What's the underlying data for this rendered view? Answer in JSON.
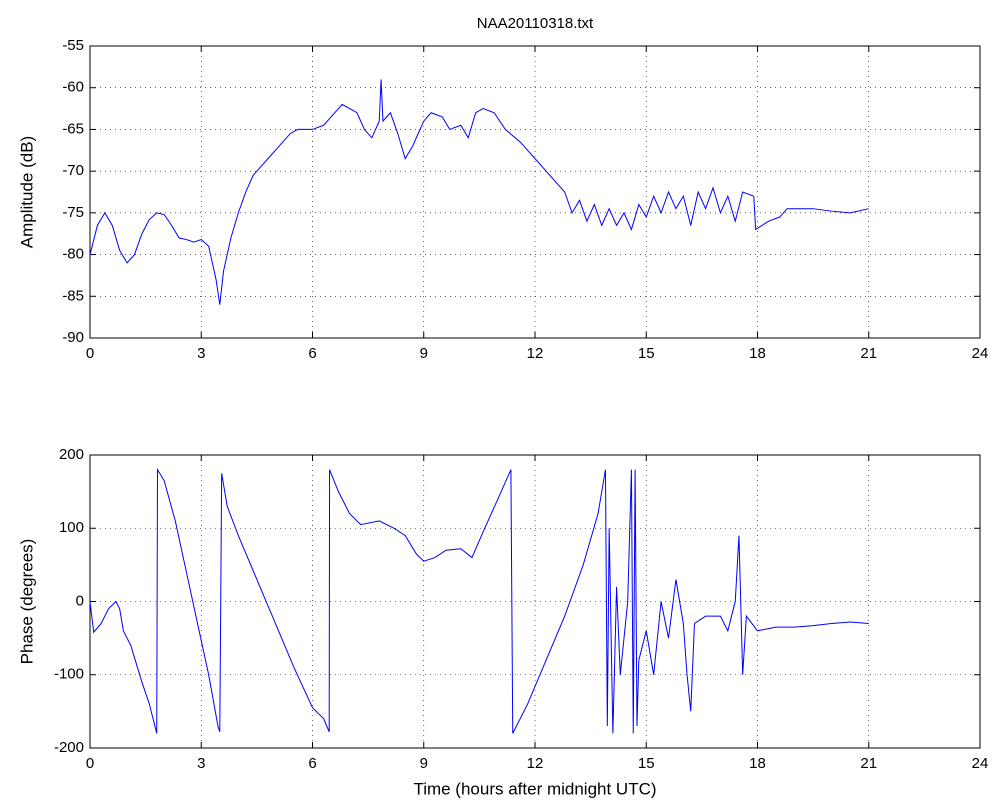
{
  "chart_data": [
    {
      "type": "line",
      "title": "NAA20110318.txt",
      "ylabel": "Amplitude (dB)",
      "x": [
        0,
        0.2,
        0.4,
        0.6,
        0.8,
        1.0,
        1.2,
        1.4,
        1.6,
        1.8,
        2.0,
        2.2,
        2.4,
        2.6,
        2.8,
        3.0,
        3.2,
        3.4,
        3.5,
        3.6,
        3.8,
        4.0,
        4.2,
        4.4,
        4.6,
        4.8,
        5.0,
        5.2,
        5.4,
        5.6,
        6.0,
        6.3,
        6.5,
        6.8,
        7.0,
        7.2,
        7.4,
        7.6,
        7.8,
        7.85,
        7.9,
        8.1,
        8.3,
        8.5,
        8.7,
        9.0,
        9.2,
        9.5,
        9.7,
        10.0,
        10.2,
        10.4,
        10.6,
        10.9,
        11.2,
        11.6,
        12.0,
        12.4,
        12.8,
        13.0,
        13.2,
        13.4,
        13.6,
        13.8,
        14.0,
        14.2,
        14.4,
        14.6,
        14.8,
        15.0,
        15.2,
        15.4,
        15.6,
        15.8,
        16.0,
        16.2,
        16.4,
        16.6,
        16.8,
        17.0,
        17.2,
        17.4,
        17.6,
        17.9,
        17.95,
        18.3,
        18.6,
        18.8,
        19.5,
        20.0,
        20.5,
        21.0
      ],
      "series": [
        {
          "color": "#0000ff",
          "values": [
            -80,
            -76.5,
            -75,
            -76.5,
            -79.5,
            -81,
            -80,
            -77.5,
            -75.8,
            -75,
            -75.2,
            -76.5,
            -78,
            -78.2,
            -78.5,
            -78.2,
            -79,
            -83,
            -86,
            -82,
            -78,
            -75,
            -72.5,
            -70.5,
            -69.5,
            -68.5,
            -67.5,
            -66.5,
            -65.5,
            -65,
            -65,
            -64.5,
            -63.5,
            -62,
            -62.5,
            -63,
            -65,
            -66,
            -64,
            -59,
            -64,
            -63,
            -65.5,
            -68.5,
            -67,
            -64,
            -63,
            -63.5,
            -65,
            -64.5,
            -66,
            -63,
            -62.5,
            -63,
            -65,
            -66.5,
            -68.5,
            -70.5,
            -72.5,
            -75,
            -73.5,
            -76,
            -74,
            -76.5,
            -74.5,
            -76.5,
            -75,
            -77,
            -74,
            -75.5,
            -73,
            -75,
            -72.5,
            -74.5,
            -73,
            -76.5,
            -72.5,
            -74.5,
            -72,
            -75,
            -73,
            -76,
            -72.5,
            -73,
            -77,
            -76,
            -75.5,
            -74.5,
            -74.5,
            -74.8,
            -75,
            -74.5
          ]
        }
      ],
      "xlim": [
        0,
        24
      ],
      "xticks": [
        0,
        3,
        6,
        9,
        12,
        15,
        18,
        21,
        24
      ],
      "ylim": [
        -90,
        -55
      ],
      "yticks": [
        -90,
        -85,
        -80,
        -75,
        -70,
        -65,
        -60,
        -55
      ],
      "grid": true
    },
    {
      "type": "line",
      "xlabel": "Time (hours after midnight UTC)",
      "ylabel": "Phase (degrees)",
      "x": [
        0,
        0.1,
        0.3,
        0.5,
        0.7,
        0.8,
        0.9,
        1.1,
        1.4,
        1.6,
        1.8,
        1.82,
        2.0,
        2.3,
        2.6,
        2.9,
        3.2,
        3.45,
        3.5,
        3.55,
        3.7,
        4.0,
        4.5,
        5.0,
        5.5,
        6.0,
        6.3,
        6.45,
        6.46,
        6.7,
        7.0,
        7.3,
        7.8,
        8.2,
        8.5,
        8.8,
        9.0,
        9.3,
        9.6,
        10.0,
        10.3,
        10.6,
        11.0,
        11.35,
        11.4,
        11.8,
        12.3,
        12.8,
        13.3,
        13.7,
        13.9,
        13.95,
        14.0,
        14.1,
        14.2,
        14.3,
        14.4,
        14.5,
        14.6,
        14.65,
        14.7,
        14.75,
        14.8,
        15.0,
        15.2,
        15.4,
        15.6,
        15.8,
        16.0,
        16.1,
        16.2,
        16.3,
        16.6,
        17.0,
        17.2,
        17.4,
        17.5,
        17.6,
        17.7,
        18.0,
        18.5,
        19.0,
        19.5,
        20.0,
        20.5,
        21.0
      ],
      "series": [
        {
          "color": "#0000ff",
          "values": [
            0,
            -42,
            -30,
            -10,
            0,
            -10,
            -40,
            -60,
            -110,
            -140,
            -180,
            180,
            165,
            110,
            40,
            -30,
            -100,
            -170,
            -178,
            175,
            130,
            90,
            30,
            -30,
            -90,
            -145,
            -160,
            -178,
            180,
            150,
            120,
            105,
            110,
            100,
            90,
            65,
            55,
            60,
            70,
            72,
            60,
            95,
            140,
            180,
            -180,
            -140,
            -80,
            -20,
            50,
            120,
            180,
            -170,
            100,
            -180,
            20,
            -100,
            -50,
            0,
            180,
            -180,
            180,
            -170,
            -80,
            -40,
            -100,
            0,
            -50,
            30,
            -30,
            -100,
            -150,
            -30,
            -20,
            -20,
            -40,
            0,
            90,
            -100,
            -20,
            -40,
            -35,
            -35,
            -33,
            -30,
            -28,
            -30
          ]
        }
      ],
      "xlim": [
        0,
        24
      ],
      "xticks": [
        0,
        3,
        6,
        9,
        12,
        15,
        18,
        21,
        24
      ],
      "ylim": [
        -200,
        200
      ],
      "yticks": [
        -200,
        -100,
        0,
        100,
        200
      ],
      "grid": true
    }
  ]
}
